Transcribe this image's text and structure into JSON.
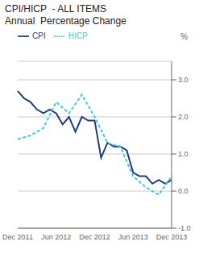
{
  "chart_data": {
    "type": "line",
    "title": "CPI/HICP  - ALL ITEMS",
    "subtitle": "Annual  Percentage Change",
    "ylabel": "%",
    "categories": [
      "Dec 2011",
      null,
      null,
      null,
      null,
      null,
      "Jun 2012",
      null,
      null,
      null,
      null,
      null,
      "Dec 2012",
      null,
      null,
      null,
      null,
      null,
      "Jun 2013",
      null,
      null,
      null,
      null,
      null,
      "Dec 2013"
    ],
    "series": [
      {
        "name": "CPI",
        "color": "#1f3d7a",
        "line_style": "solid",
        "values": [
          2.7,
          2.5,
          2.4,
          2.2,
          2.1,
          2.2,
          2.1,
          1.8,
          2.0,
          1.6,
          2.0,
          1.9,
          1.9,
          0.9,
          1.3,
          1.2,
          1.2,
          1.1,
          0.5,
          0.4,
          0.4,
          0.2,
          0.3,
          0.2,
          0.3
        ]
      },
      {
        "name": "HICP",
        "color": "#3dcbd8",
        "line_style": "dashed",
        "values": [
          1.4,
          null,
          1.5,
          null,
          1.7,
          null,
          2.4,
          null,
          2.1,
          null,
          2.6,
          null,
          2.0,
          null,
          1.3,
          null,
          1.2,
          null,
          0.4,
          null,
          0.1,
          null,
          -0.1,
          null,
          0.4
        ]
      }
    ],
    "ylim": [
      -1.0,
      3.5
    ],
    "yticks": [
      {
        "value": -1.0,
        "label": "-1.0"
      },
      {
        "value": 0.0,
        "label": "0.0"
      },
      {
        "value": 1.0,
        "label": "1.0"
      },
      {
        "value": 2.0,
        "label": "2.0"
      },
      {
        "value": 3.0,
        "label": "3.0"
      }
    ],
    "grid": true,
    "legend": "upper left"
  }
}
